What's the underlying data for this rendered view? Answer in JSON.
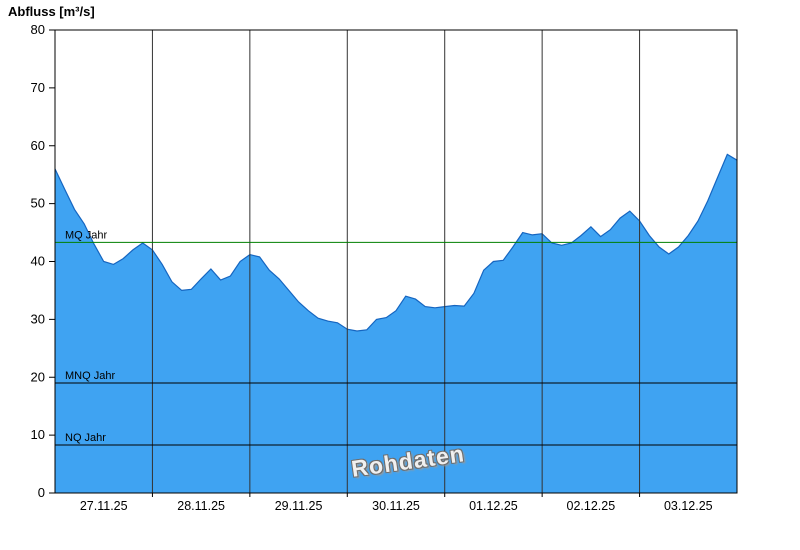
{
  "chart_data": {
    "type": "area",
    "title": "Abfluss [m³/s]",
    "watermark": "Rohdaten",
    "ylabel": "Abfluss [m³/s]",
    "ylim": [
      0,
      80
    ],
    "y_ticks": [
      0,
      10,
      20,
      30,
      40,
      50,
      60,
      70,
      80
    ],
    "x_tick_labels": [
      "27.11.25",
      "28.11.25",
      "29.11.25",
      "30.11.25",
      "01.12.25",
      "02.12.25",
      "03.12.25"
    ],
    "x_range_days": 7,
    "grid": "vertical-day-lines",
    "series": [
      {
        "name": "Abfluss Rohdaten",
        "x_step_days": 0.1,
        "values": [
          56,
          52.5,
          49,
          46.5,
          43,
          40,
          39.5,
          40.5,
          42,
          43.2,
          42,
          39.5,
          36.5,
          35,
          35.2,
          37,
          38.7,
          36.8,
          37.5,
          40,
          41.2,
          40.8,
          38.5,
          37,
          35,
          33,
          31.5,
          30.2,
          29.7,
          29.4,
          28.3,
          28,
          28.2,
          30,
          30.3,
          31.5,
          34,
          33.5,
          32.2,
          32,
          32.2,
          32.4,
          32.3,
          34.5,
          38.5,
          40,
          40.2,
          42.5,
          45,
          44.6,
          44.8,
          43.2,
          42.8,
          43.2,
          44.5,
          46,
          44.3,
          45.5,
          47.5,
          48.7,
          47,
          44.5,
          42.5,
          41.3,
          42.5,
          44.5,
          47,
          50.5,
          54.5,
          58.5,
          57.5
        ]
      }
    ],
    "reference_lines": [
      {
        "label": "MQ Jahr",
        "value": 43.3,
        "color": "#007f00"
      },
      {
        "label": "MNQ Jahr",
        "value": 19.0,
        "color": "#000000"
      },
      {
        "label": "NQ Jahr",
        "value": 8.3,
        "color": "#000000"
      }
    ],
    "colors": {
      "area_fill": "#3fa3f2",
      "area_stroke": "#1565c0",
      "grid_line": "#333333",
      "axis": "#000000",
      "text": "#000000"
    }
  }
}
